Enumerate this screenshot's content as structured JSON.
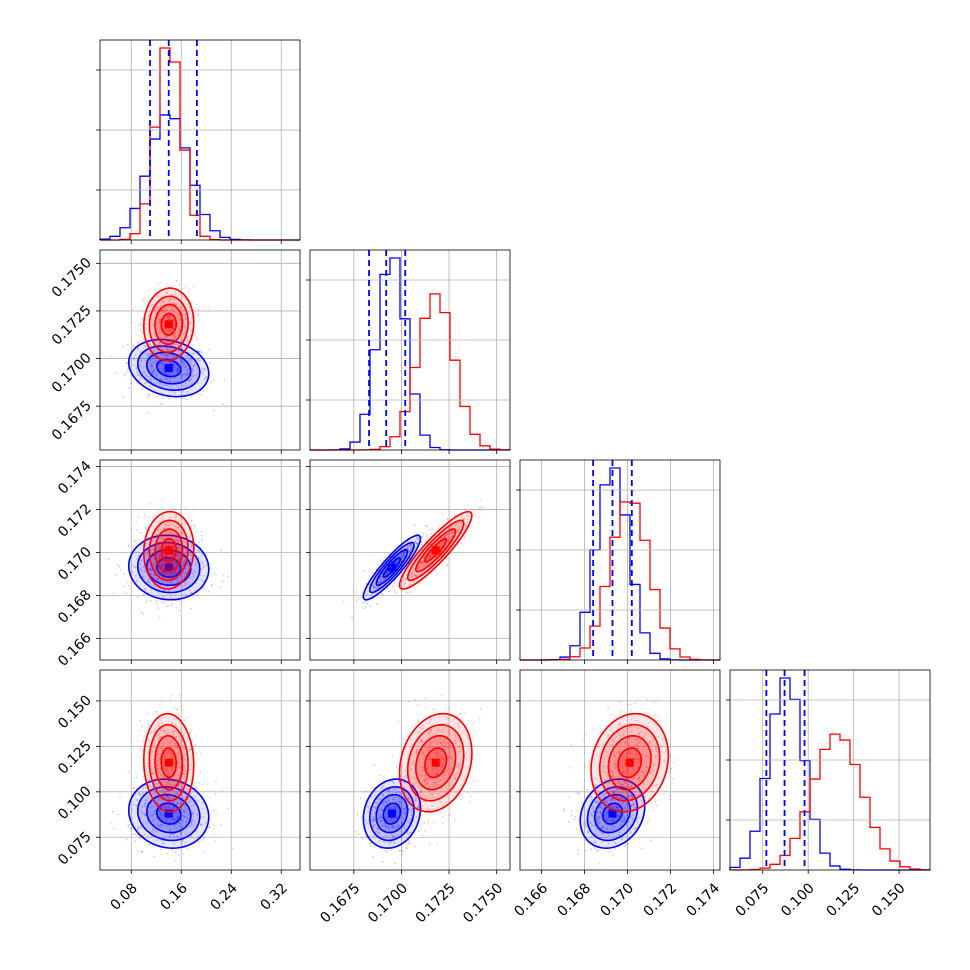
{
  "colors": {
    "blue": "#0000ff",
    "red": "#ff0000"
  },
  "chart_data": {
    "type": "corner",
    "title": "",
    "grid": true,
    "params": [
      {
        "range": [
          0.03,
          0.35
        ],
        "ticks": [
          0.08,
          0.16,
          0.24,
          0.32
        ],
        "tick_labels": [
          "0.08",
          "0.16",
          "0.24",
          "0.32"
        ]
      },
      {
        "range": [
          0.1652,
          0.1757
        ],
        "ticks": [
          0.1675,
          0.17,
          0.1725,
          0.175
        ],
        "tick_labels": [
          "0.1675",
          "0.1700",
          "0.1725",
          "0.1750"
        ]
      },
      {
        "range": [
          0.165,
          0.1743
        ],
        "ticks": [
          0.166,
          0.168,
          0.17,
          0.172,
          0.174
        ],
        "tick_labels": [
          "0.166",
          "0.168",
          "0.170",
          "0.172",
          "0.174"
        ]
      },
      {
        "range": [
          0.057,
          0.167
        ],
        "ticks": [
          0.075,
          0.1,
          0.125,
          0.15
        ],
        "tick_labels": [
          "0.075",
          "0.100",
          "0.125",
          "0.150"
        ]
      }
    ],
    "series": [
      {
        "color": "#0000ff",
        "mean": [
          0.14,
          0.1695,
          0.1693,
          0.088
        ],
        "std": [
          0.032,
          0.00075,
          0.00075,
          0.0095
        ],
        "quantiles": [
          [
            0.11,
            0.14,
            0.185
          ],
          [
            0.1683,
            0.1692,
            0.1702
          ],
          [
            0.1684,
            0.1693,
            0.1702
          ],
          [
            0.077,
            0.087,
            0.098
          ]
        ],
        "corr": [
          [
            1,
            -0.2,
            -0.05,
            -0.1
          ],
          [
            -0.2,
            1,
            0.9,
            0.15
          ],
          [
            -0.05,
            0.9,
            1,
            0.2
          ],
          [
            -0.1,
            0.15,
            0.2,
            1
          ]
        ]
      },
      {
        "color": "#ff0000",
        "mean": [
          0.14,
          0.1718,
          0.1701,
          0.116
        ],
        "std": [
          0.02,
          0.00095,
          0.0009,
          0.0135
        ],
        "quantiles": null,
        "corr": [
          [
            1,
            0.05,
            0.05,
            -0.05
          ],
          [
            0.05,
            1,
            0.9,
            0.2
          ],
          [
            0.05,
            0.9,
            1,
            0.15
          ],
          [
            -0.05,
            0.2,
            0.15,
            1
          ]
        ]
      }
    ]
  }
}
